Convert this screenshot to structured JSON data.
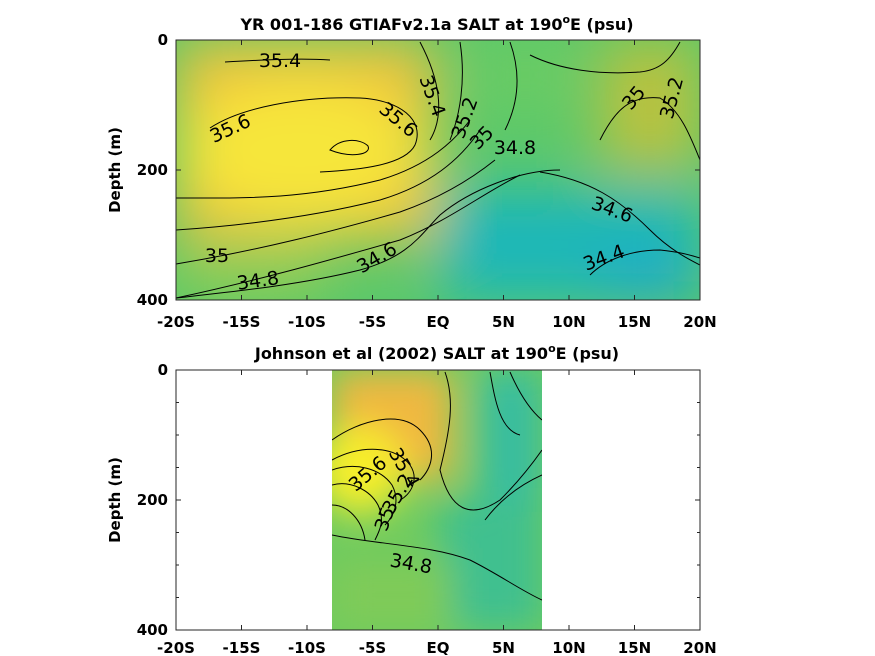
{
  "chart_data": [
    {
      "type": "contour",
      "title_main": "YR 001-186 GTIAFv2.1a SALT at 190",
      "title_sup": "o",
      "title_end": "E (psu)",
      "ylabel": "Depth (m)",
      "xlim": [
        -20,
        20
      ],
      "ylim": [
        0,
        400
      ],
      "x_ticks": [
        -20,
        -15,
        -10,
        -5,
        0,
        5,
        10,
        15,
        20
      ],
      "x_ticklabels": [
        "-20S",
        "-15S",
        "-10S",
        "-5S",
        "EQ",
        "5N",
        "10N",
        "15N",
        "20N"
      ],
      "y_ticks": [
        0,
        200,
        400
      ],
      "y_ticklabels": [
        "0",
        "200",
        "400"
      ],
      "contour_levels": [
        34.4,
        34.6,
        34.8,
        35,
        35.2,
        35.4,
        35.6
      ],
      "contour_labels": [
        {
          "text": "35.4",
          "x": -9.1,
          "y": 30
        },
        {
          "text": "35.6",
          "x": -14.3,
          "y": 135
        },
        {
          "text": "35.6",
          "x": -4.1,
          "y": 125
        },
        {
          "text": "35.4",
          "x": -0.5,
          "y": 92
        },
        {
          "text": "35.2",
          "x": 2.1,
          "y": 118
        },
        {
          "text": "35",
          "x": 3.5,
          "y": 140
        },
        {
          "text": "34.8",
          "x": 6.0,
          "y": 163
        },
        {
          "text": "35",
          "x": 14.8,
          "y": 94
        },
        {
          "text": "35.2",
          "x": 18.3,
          "y": 97
        },
        {
          "text": "34.6",
          "x": 14.1,
          "y": 263
        },
        {
          "text": "34.4",
          "x": 12.6,
          "y": 328
        },
        {
          "text": "35",
          "x": -16.5,
          "y": 330
        },
        {
          "text": "34.8",
          "x": -12.8,
          "y": 368
        },
        {
          "text": "34.6",
          "x": -3.5,
          "y": 338
        }
      ]
    },
    {
      "type": "contour",
      "title_main": "Johnson et al (2002) SALT at 190",
      "title_sup": "o",
      "title_end": "E (psu)",
      "ylabel": "Depth (m)",
      "xlim": [
        -20,
        20
      ],
      "ylim": [
        0,
        400
      ],
      "data_xrange": [
        -8,
        8
      ],
      "x_ticks": [
        -20,
        -15,
        -10,
        -5,
        0,
        5,
        10,
        15,
        20
      ],
      "x_ticklabels": [
        "-20S",
        "-15S",
        "-10S",
        "-5S",
        "EQ",
        "5N",
        "10N",
        "15N",
        "20N"
      ],
      "y_ticks": [
        0,
        200,
        400
      ],
      "y_ticklabels": [
        "0",
        "200",
        "400"
      ],
      "contour_levels": [
        34.8,
        35,
        35.2,
        35.4,
        35.6
      ],
      "contour_labels": [
        {
          "text": "35.4",
          "x": -2.7,
          "y": 158
        },
        {
          "text": "35.6",
          "x": -5.6,
          "y": 170
        },
        {
          "text": "35.2",
          "x": -2.9,
          "y": 190
        },
        {
          "text": "35",
          "x": -3.6,
          "y": 225
        },
        {
          "text": "34.8",
          "x": -1.8,
          "y": 300
        }
      ]
    }
  ]
}
